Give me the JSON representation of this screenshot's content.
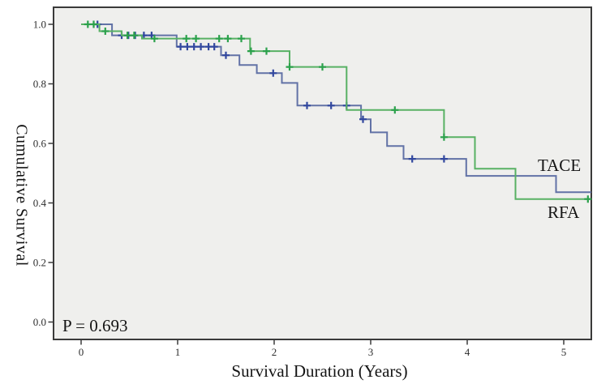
{
  "chart_data": {
    "type": "line",
    "subtype": "kaplan-meier-step",
    "title": "",
    "xlabel": "Survival Duration (Years)",
    "ylabel": "Cumulative Survival",
    "annotation": "P = 0.693",
    "grid": false,
    "legend_position": "labels-at-line-ends-right",
    "xlim": [
      -0.29,
      5.29
    ],
    "ylim": [
      -0.06,
      1.06
    ],
    "xticks": [
      "0",
      "1",
      "2",
      "3",
      "4",
      "5"
    ],
    "xtick_values": [
      0,
      1,
      2,
      3,
      4,
      5
    ],
    "yticks": [
      "0.0",
      "0.2",
      "0.4",
      "0.6",
      "0.8",
      "1.0"
    ],
    "ytick_values": [
      0,
      0.2,
      0.4,
      0.6,
      0.8,
      1.0
    ],
    "plot_bg": "#efefed",
    "frame_color": "#3a3a3a",
    "series": [
      {
        "name": "TACE",
        "color": "#6272a6",
        "censor_color": "#31479e",
        "steps": [
          [
            0.0,
            1.0
          ],
          [
            0.32,
            0.963
          ],
          [
            0.99,
            0.925
          ],
          [
            1.45,
            0.896
          ],
          [
            1.64,
            0.863
          ],
          [
            1.82,
            0.836
          ],
          [
            2.08,
            0.803
          ],
          [
            2.24,
            0.727
          ],
          [
            2.9,
            0.681
          ],
          [
            3.0,
            0.637
          ],
          [
            3.17,
            0.591
          ],
          [
            3.34,
            0.548
          ],
          [
            3.99,
            0.491
          ],
          [
            4.92,
            0.436
          ]
        ],
        "end_x": 5.285,
        "censors": [
          [
            0.17,
            1.0
          ],
          [
            0.42,
            0.963
          ],
          [
            0.49,
            0.963
          ],
          [
            0.56,
            0.963
          ],
          [
            0.65,
            0.963
          ],
          [
            0.73,
            0.963
          ],
          [
            1.03,
            0.925
          ],
          [
            1.1,
            0.925
          ],
          [
            1.17,
            0.925
          ],
          [
            1.24,
            0.925
          ],
          [
            1.32,
            0.925
          ],
          [
            1.38,
            0.925
          ],
          [
            1.5,
            0.896
          ],
          [
            1.99,
            0.836
          ],
          [
            2.34,
            0.727
          ],
          [
            2.59,
            0.727
          ],
          [
            2.75,
            0.727
          ],
          [
            2.92,
            0.681
          ],
          [
            3.43,
            0.548
          ],
          [
            3.76,
            0.548
          ]
        ]
      },
      {
        "name": "RFA",
        "color": "#58b164",
        "censor_color": "#2ba14b",
        "steps": [
          [
            0.0,
            1.0
          ],
          [
            0.19,
            0.977
          ],
          [
            0.42,
            0.963
          ],
          [
            0.63,
            0.952
          ],
          [
            1.75,
            0.91
          ],
          [
            2.16,
            0.857
          ],
          [
            2.75,
            0.712
          ],
          [
            3.76,
            0.621
          ],
          [
            4.08,
            0.515
          ],
          [
            4.5,
            0.413
          ]
        ],
        "end_x": 5.285,
        "censors": [
          [
            0.07,
            1.0
          ],
          [
            0.13,
            1.0
          ],
          [
            0.25,
            0.977
          ],
          [
            0.48,
            0.963
          ],
          [
            0.55,
            0.963
          ],
          [
            0.76,
            0.952
          ],
          [
            1.09,
            0.952
          ],
          [
            1.19,
            0.952
          ],
          [
            1.43,
            0.952
          ],
          [
            1.52,
            0.952
          ],
          [
            1.66,
            0.952
          ],
          [
            1.76,
            0.91
          ],
          [
            1.92,
            0.91
          ],
          [
            2.16,
            0.857
          ],
          [
            2.5,
            0.857
          ],
          [
            3.25,
            0.712
          ],
          [
            3.76,
            0.621
          ],
          [
            5.25,
            0.413
          ]
        ]
      }
    ]
  }
}
